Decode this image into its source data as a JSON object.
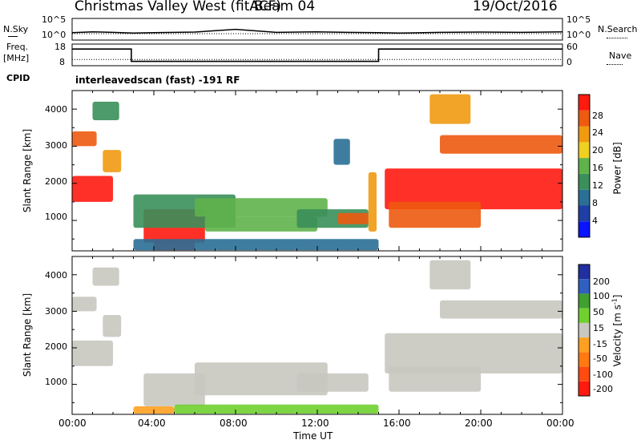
{
  "header": {
    "title": "Christmas Valley West (fitACF)",
    "beam": "Beam 04",
    "date": "19/Oct/2016"
  },
  "noise_panel": {
    "left_label": "N.Sky",
    "right_label": "N.Search",
    "left_ticks": [
      "10^5",
      "10^0"
    ],
    "right_ticks": [
      "10^5",
      "10^0"
    ]
  },
  "freq_panel": {
    "left_label_1": "Freq.",
    "left_label_2": "[MHz]",
    "left_ticks": [
      "18",
      "8"
    ],
    "right_label": "Nave",
    "right_ticks": [
      "60",
      "0"
    ],
    "cpid_label": "CPID",
    "cpid_text": "interleavedscan (fast) -191 RF"
  },
  "axes": {
    "ylabel": "Slant Range [km]",
    "xlabel": "Time UT",
    "x_ticks": [
      "00:00",
      "04:00",
      "08:00",
      "12:00",
      "16:00",
      "20:00",
      "00:00"
    ],
    "y_ticks": [
      "1000",
      "2000",
      "3000",
      "4000"
    ]
  },
  "colorbars": {
    "power": {
      "label": "Power [dB]",
      "ticks": [
        "4",
        "8",
        "12",
        "16",
        "20",
        "24",
        "28"
      ],
      "colors": [
        "#0a14ff",
        "#1f3fa6",
        "#2a6f96",
        "#3a8f5a",
        "#5fb34a",
        "#f0d020",
        "#f09a10",
        "#ee5a10",
        "#ff1a10"
      ]
    },
    "velocity": {
      "label": "Velocity [m s",
      "label_sup": "-1",
      "label_close": "]",
      "ticks": [
        "200",
        "100",
        "50",
        "15",
        "-15",
        "-50",
        "-100",
        "-200"
      ],
      "colors": [
        "#2030a0",
        "#3060c0",
        "#40a030",
        "#70d030",
        "#c8c8c0",
        "#ffa020",
        "#ff7a10",
        "#ff4a10",
        "#ff1a10"
      ]
    }
  },
  "chart_data": [
    {
      "type": "line",
      "title": "N.Sky / N.Search",
      "x_range_hours": [
        0,
        24
      ],
      "y_scale": "log",
      "ylim": [
        1,
        100000
      ],
      "series": [
        {
          "name": "N.Sky",
          "x": [
            0,
            1,
            2,
            3,
            4,
            6,
            8,
            10,
            12,
            13.5,
            15,
            16,
            18,
            20,
            22,
            24
          ],
          "values": [
            50,
            80,
            60,
            40,
            50,
            70,
            300,
            60,
            80,
            60,
            50,
            40,
            60,
            70,
            60,
            80
          ]
        },
        {
          "name": "N.Search",
          "x": [
            0,
            4,
            8,
            12,
            16,
            20,
            24
          ],
          "values": [
            30,
            30,
            30,
            30,
            30,
            30,
            30
          ]
        }
      ]
    },
    {
      "type": "line",
      "title": "Freq / Nave",
      "x_range_hours": [
        0,
        24
      ],
      "series": [
        {
          "name": "Freq",
          "x": [
            0,
            2.9,
            2.9,
            15.0,
            15.0,
            24
          ],
          "values": [
            15.7,
            15.7,
            10.0,
            10.0,
            15.7,
            15.7
          ],
          "ylim": [
            8,
            18
          ]
        },
        {
          "name": "Nave",
          "x": [
            0,
            24
          ],
          "values": [
            17,
            17
          ],
          "ylim": [
            0,
            60
          ]
        }
      ]
    },
    {
      "type": "heatmap",
      "title": "Power [dB]",
      "x_range_hours": [
        0,
        24
      ],
      "ylim_km": [
        180,
        4500
      ],
      "clim": [
        0,
        30
      ],
      "regions": [
        {
          "t": [
            0.0,
            2.0
          ],
          "r": [
            1500,
            2200
          ],
          "value": 29
        },
        {
          "t": [
            0.0,
            1.2
          ],
          "r": [
            3000,
            3400
          ],
          "value": 26
        },
        {
          "t": [
            1.0,
            2.3
          ],
          "r": [
            3700,
            4200
          ],
          "value": 13
        },
        {
          "t": [
            1.5,
            2.4
          ],
          "r": [
            2300,
            2900
          ],
          "value": 20
        },
        {
          "t": [
            3.5,
            6.5
          ],
          "r": [
            400,
            1300
          ],
          "value": 27
        },
        {
          "t": [
            4.0,
            6.0
          ],
          "r": [
            200,
            500
          ],
          "value": 28
        },
        {
          "t": [
            3.0,
            8.0
          ],
          "r": [
            800,
            1700
          ],
          "value": 10
        },
        {
          "t": [
            6.0,
            12.5
          ],
          "r": [
            1100,
            1600
          ],
          "value": 14
        },
        {
          "t": [
            6.5,
            12.0
          ],
          "r": [
            700,
            1100
          ],
          "value": 16
        },
        {
          "t": [
            11.0,
            14.5
          ],
          "r": [
            800,
            1300
          ],
          "value": 10
        },
        {
          "t": [
            13.0,
            14.5
          ],
          "r": [
            900,
            1200
          ],
          "value": 24
        },
        {
          "t": [
            12.8,
            13.6
          ],
          "r": [
            2500,
            3200
          ],
          "value": 9
        },
        {
          "t": [
            14.5,
            14.9
          ],
          "r": [
            700,
            2300
          ],
          "value": 20
        },
        {
          "t": [
            15.3,
            24.0
          ],
          "r": [
            1300,
            2400
          ],
          "value": 29
        },
        {
          "t": [
            15.5,
            20.0
          ],
          "r": [
            800,
            1500
          ],
          "value": 24
        },
        {
          "t": [
            17.5,
            19.5
          ],
          "r": [
            3600,
            4400
          ],
          "value": 22
        },
        {
          "t": [
            18.0,
            24.0
          ],
          "r": [
            2800,
            3300
          ],
          "value": 26
        },
        {
          "t": [
            3.0,
            15.0
          ],
          "r": [
            200,
            500
          ],
          "value": 8
        }
      ]
    },
    {
      "type": "heatmap",
      "title": "Velocity [m s-1]",
      "x_range_hours": [
        0,
        24
      ],
      "ylim_km": [
        180,
        4500
      ],
      "clim": [
        -200,
        200
      ],
      "regions": [
        {
          "t": [
            0.0,
            2.0
          ],
          "r": [
            1500,
            2200
          ],
          "value": 0
        },
        {
          "t": [
            0.0,
            1.2
          ],
          "r": [
            3000,
            3400
          ],
          "value": 0
        },
        {
          "t": [
            1.0,
            2.3
          ],
          "r": [
            3700,
            4200
          ],
          "value": 0
        },
        {
          "t": [
            1.5,
            2.4
          ],
          "r": [
            2300,
            2900
          ],
          "value": 0
        },
        {
          "t": [
            3.5,
            6.5
          ],
          "r": [
            400,
            1300
          ],
          "value": 0
        },
        {
          "t": [
            6.0,
            12.5
          ],
          "r": [
            700,
            1600
          ],
          "value": 0
        },
        {
          "t": [
            11.0,
            14.5
          ],
          "r": [
            800,
            1300
          ],
          "value": 0
        },
        {
          "t": [
            15.3,
            24.0
          ],
          "r": [
            1300,
            2400
          ],
          "value": 0
        },
        {
          "t": [
            15.5,
            20.0
          ],
          "r": [
            800,
            1500
          ],
          "value": 0
        },
        {
          "t": [
            17.5,
            19.5
          ],
          "r": [
            3600,
            4400
          ],
          "value": 0
        },
        {
          "t": [
            18.0,
            24.0
          ],
          "r": [
            2800,
            3300
          ],
          "value": 0
        },
        {
          "t": [
            5.0,
            15.0
          ],
          "r": [
            200,
            450
          ],
          "value": 60
        },
        {
          "t": [
            3.0,
            5.0
          ],
          "r": [
            200,
            400
          ],
          "value": -40
        }
      ]
    }
  ]
}
